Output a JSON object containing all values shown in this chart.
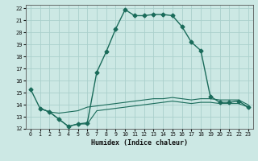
{
  "xlabel": "Humidex (Indice chaleur)",
  "bg_color": "#cce8e4",
  "grid_color": "#aad0cc",
  "line_color": "#1a6b5a",
  "xlim": [
    -0.5,
    23.5
  ],
  "ylim": [
    12,
    22.3
  ],
  "xticks": [
    0,
    1,
    2,
    3,
    4,
    5,
    6,
    7,
    8,
    9,
    10,
    11,
    12,
    13,
    14,
    15,
    16,
    17,
    18,
    19,
    20,
    21,
    22,
    23
  ],
  "yticks": [
    12,
    13,
    14,
    15,
    16,
    17,
    18,
    19,
    20,
    21,
    22
  ],
  "series": [
    {
      "x": [
        0,
        1,
        2,
        3,
        4,
        5,
        6,
        7,
        8,
        9,
        10,
        11,
        12,
        13,
        14,
        15,
        16,
        17,
        18,
        19,
        20,
        21,
        22,
        23
      ],
      "y": [
        15.3,
        13.7,
        13.4,
        12.8,
        12.2,
        12.4,
        12.5,
        16.7,
        18.4,
        20.3,
        21.9,
        21.4,
        21.4,
        21.5,
        21.5,
        21.4,
        20.5,
        19.2,
        18.5,
        14.7,
        14.2,
        14.2,
        14.3,
        13.8
      ],
      "marker": "D",
      "markersize": 2.5,
      "linewidth": 1.0,
      "linestyle": "-"
    },
    {
      "x": [
        1,
        2,
        3,
        4,
        5,
        6,
        7,
        8,
        9,
        10,
        11,
        12,
        13,
        14,
        15,
        16,
        17,
        18,
        19,
        20,
        21,
        22,
        23
      ],
      "y": [
        13.7,
        13.4,
        13.3,
        13.4,
        13.5,
        13.8,
        13.9,
        14.0,
        14.1,
        14.2,
        14.3,
        14.4,
        14.5,
        14.5,
        14.6,
        14.5,
        14.4,
        14.5,
        14.5,
        14.4,
        14.4,
        14.4,
        14.0
      ],
      "marker": null,
      "markersize": 0,
      "linewidth": 0.8,
      "linestyle": "-"
    },
    {
      "x": [
        1,
        2,
        3,
        4,
        5,
        6,
        7,
        8,
        9,
        10,
        11,
        12,
        13,
        14,
        15,
        16,
        17,
        18,
        19,
        20,
        21,
        22,
        23
      ],
      "y": [
        13.7,
        13.4,
        12.8,
        12.2,
        12.4,
        12.4,
        13.5,
        13.6,
        13.7,
        13.8,
        13.9,
        14.0,
        14.1,
        14.2,
        14.3,
        14.2,
        14.1,
        14.2,
        14.2,
        14.1,
        14.1,
        14.1,
        13.8
      ],
      "marker": null,
      "markersize": 0,
      "linewidth": 0.8,
      "linestyle": "-"
    }
  ]
}
